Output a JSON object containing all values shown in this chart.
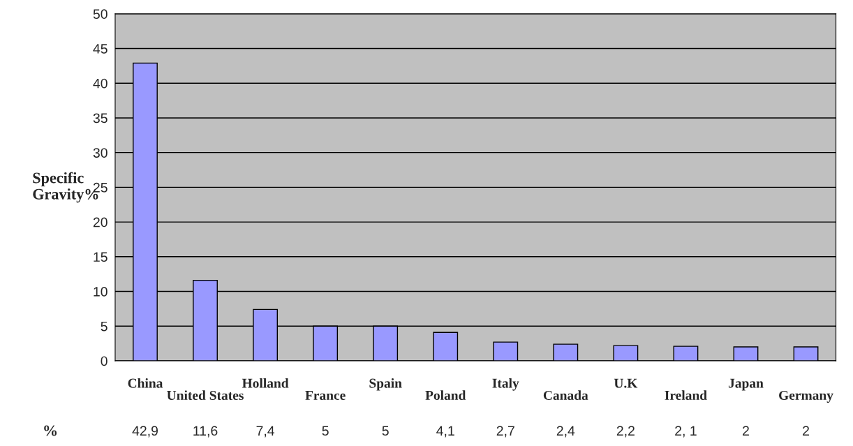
{
  "chart_data": {
    "type": "bar",
    "categories": [
      "China",
      "United States",
      "Holland",
      "France",
      "Spain",
      "Poland",
      "Italy",
      "Canada",
      "U.K",
      "Ireland",
      "Japan",
      "Germany"
    ],
    "values": [
      42.9,
      11.6,
      7.4,
      5,
      5,
      4.1,
      2.7,
      2.4,
      2.2,
      2.1,
      2,
      2
    ],
    "value_labels": [
      "42,9",
      "11,6",
      "7,4",
      "5",
      "5",
      "4,1",
      "2,7",
      "2,4",
      "2,2",
      "2, 1",
      "2",
      "2"
    ],
    "color": "#9999ff",
    "ylabel": "Specific Gravity%",
    "annotations": [
      "%"
    ],
    "ylim": [
      0,
      50
    ],
    "yticks": [
      0,
      5,
      10,
      15,
      20,
      25,
      30,
      35,
      40,
      45,
      50
    ],
    "grid": "y",
    "legend": false
  }
}
